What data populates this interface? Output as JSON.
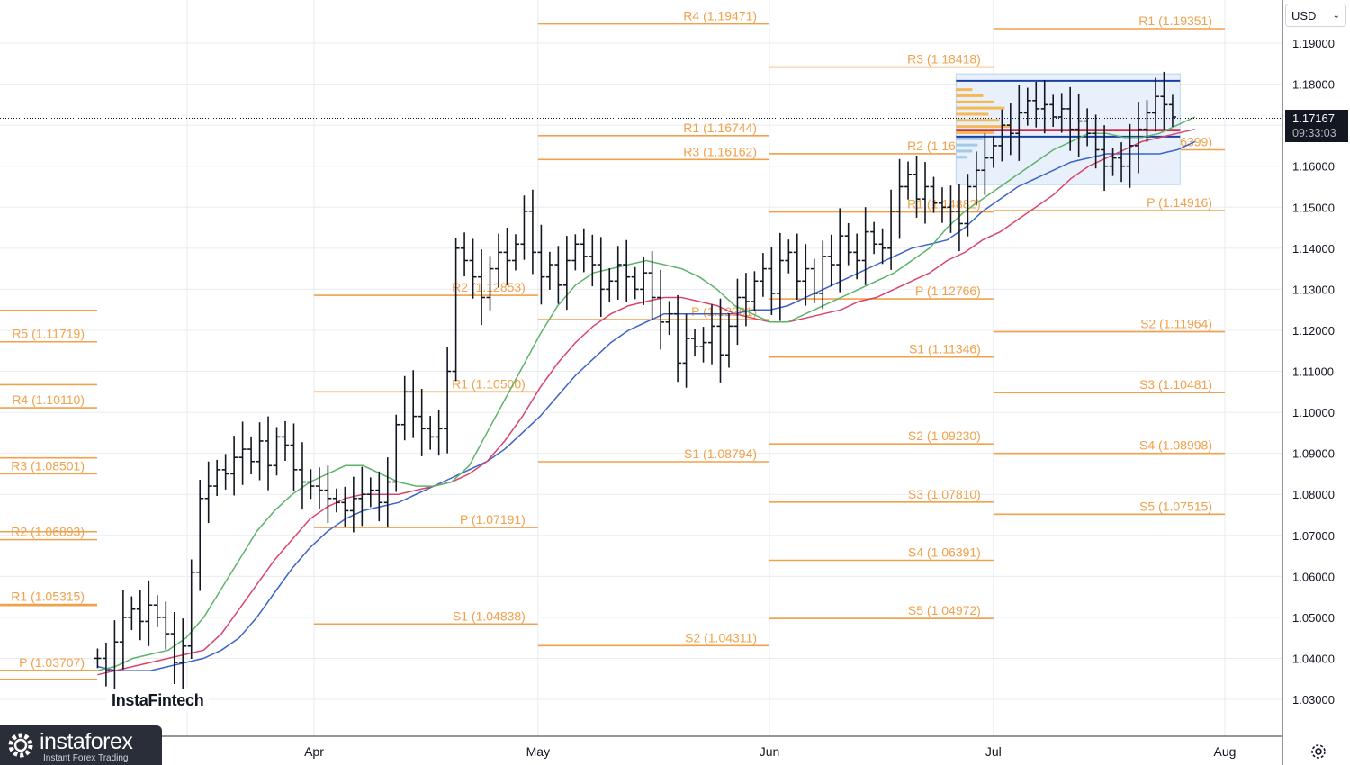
{
  "toolbar": {
    "currency_label": "USD",
    "last_price": "1.17167",
    "countdown": "09:33:03",
    "settings_icon": "gear-icon",
    "dropdown_icon": "chevron-down-icon"
  },
  "branding": {
    "chart_logo": "InstaFintech",
    "brand_name": "instaforex",
    "brand_tagline": "Instant Forex Trading",
    "brand_icon": "gear-icon"
  },
  "colors": {
    "pivot": "#f0a14b",
    "bars": "#131722",
    "sma_fast": "#5db36a",
    "sma_mid": "#d9456a",
    "sma_slow": "#3d63c9",
    "volume_profile": "#f5b342",
    "vp_box": "#b8d4ee",
    "grid": "#e9ebf0"
  },
  "chart_data": {
    "type": "ohlc",
    "ylim": [
      1.022,
      1.202
    ],
    "y_ticks": [
      "1.19000",
      "1.18000",
      "1.17000",
      "1.16000",
      "1.15000",
      "1.14000",
      "1.13000",
      "1.12000",
      "1.11000",
      "1.10000",
      "1.09000",
      "1.08000",
      "1.07000",
      "1.06000",
      "1.05000",
      "1.04000",
      "1.03000"
    ],
    "y_tick_values": [
      1.19,
      1.18,
      1.17,
      1.16,
      1.15,
      1.14,
      1.13,
      1.12,
      1.11,
      1.1,
      1.09,
      1.08,
      1.07,
      1.06,
      1.05,
      1.04,
      1.03
    ],
    "x_ticks": [
      "Apr",
      "May",
      "Jun",
      "Jul",
      "Aug"
    ],
    "x_tick_dates": [
      "2025-04-01",
      "2025-05-01",
      "2025-06-01",
      "2025-07-01",
      "2025-08-01"
    ],
    "x_start": "2025-03-03",
    "last_price": 1.17167,
    "pivot_months": [
      {
        "month": "2025-02",
        "levels": [
          {
            "label": "R5 (1.11719)",
            "value": 1.11719
          },
          {
            "label": "R4 (1.10110)",
            "value": 1.1011
          },
          {
            "label": "R3 (1.08501)",
            "value": 1.08501
          },
          {
            "label": "R2 (1.06893)",
            "value": 1.06893
          },
          {
            "label": "R1 (1.05315)",
            "value": 1.05315
          },
          {
            "label": "P (1.03707)",
            "value": 1.03707
          },
          {
            "label": "",
            "value": 1.12487
          },
          {
            "label": "",
            "value": 1.10673
          },
          {
            "label": "",
            "value": 1.08888
          },
          {
            "label": "",
            "value": 1.07088
          },
          {
            "label": "",
            "value": 1.05288
          },
          {
            "label": "",
            "value": 1.03488
          }
        ]
      },
      {
        "month": "2025-03",
        "levels": [
          {
            "label": "R2 (1.12853)",
            "value": 1.12853
          },
          {
            "label": "R1 (1.10500)",
            "value": 1.105
          },
          {
            "label": "P (1.07191)",
            "value": 1.07191
          },
          {
            "label": "S1 (1.04838)",
            "value": 1.04838
          }
        ]
      },
      {
        "month": "2025-04",
        "levels": [
          {
            "label": "R4 (1.19471)",
            "value": 1.19471
          },
          {
            "label": "R3 (1.16162)",
            "value": 1.16162
          },
          {
            "label": "R1 (1.16744)",
            "value": 1.16744
          },
          {
            "label": "P (1.12261)",
            "value": 1.12261
          },
          {
            "label": "S1 (1.08794)",
            "value": 1.08794
          },
          {
            "label": "S2 (1.04311)",
            "value": 1.04311
          }
        ]
      },
      {
        "month": "2025-05",
        "levels": [
          {
            "label": "R3 (1.18418)",
            "value": 1.18418
          },
          {
            "label": "R2 (1.16302)",
            "value": 1.16302
          },
          {
            "label": "R1 (1.14882)",
            "value": 1.14882
          },
          {
            "label": "P (1.12766)",
            "value": 1.12766
          },
          {
            "label": "S1 (1.11346)",
            "value": 1.11346
          },
          {
            "label": "S2 (1.09230)",
            "value": 1.0923
          },
          {
            "label": "S3 (1.07810)",
            "value": 1.0781
          },
          {
            "label": "S4 (1.06391)",
            "value": 1.06391
          },
          {
            "label": "S5 (1.04972)",
            "value": 1.04972
          }
        ]
      },
      {
        "month": "2025-06",
        "levels": [
          {
            "label": "R1 (1.19351)",
            "value": 1.19351
          },
          {
            "label": "P (1.16399)",
            "value": 1.16399
          },
          {
            "label": "P (1.14916)",
            "value": 1.14916
          },
          {
            "label": "S2 (1.11964)",
            "value": 1.11964
          },
          {
            "label": "S3 (1.10481)",
            "value": 1.10481
          },
          {
            "label": "S4 (1.08998)",
            "value": 1.08998
          },
          {
            "label": "S5 (1.07515)",
            "value": 1.07515
          }
        ]
      }
    ],
    "close_series": [
      1.04,
      1.037,
      1.044,
      1.05,
      1.052,
      1.049,
      1.053,
      1.05,
      1.046,
      1.039,
      1.043,
      1.061,
      1.079,
      1.082,
      1.086,
      1.085,
      1.089,
      1.091,
      1.088,
      1.093,
      1.087,
      1.094,
      1.092,
      1.086,
      1.083,
      1.082,
      1.081,
      1.079,
      1.078,
      1.076,
      1.079,
      1.08,
      1.081,
      1.078,
      1.083,
      1.097,
      1.105,
      1.099,
      1.096,
      1.094,
      1.096,
      1.11,
      1.14,
      1.137,
      1.133,
      1.128,
      1.135,
      1.139,
      1.137,
      1.141,
      1.149,
      1.139,
      1.133,
      1.136,
      1.131,
      1.137,
      1.141,
      1.138,
      1.136,
      1.13,
      1.132,
      1.136,
      1.133,
      1.13,
      1.134,
      1.128,
      1.122,
      1.124,
      1.112,
      1.118,
      1.116,
      1.117,
      1.121,
      1.114,
      1.121,
      1.128,
      1.127,
      1.132,
      1.135,
      1.129,
      1.137,
      1.139,
      1.132,
      1.135,
      1.129,
      1.138,
      1.136,
      1.143,
      1.139,
      1.137,
      1.144,
      1.141,
      1.14,
      1.149,
      1.155,
      1.158,
      1.152,
      1.155,
      1.151,
      1.15,
      1.149,
      1.146,
      1.155,
      1.159,
      1.162,
      1.165,
      1.17,
      1.168,
      1.173,
      1.176,
      1.174,
      1.175,
      1.172,
      1.174,
      1.169,
      1.171,
      1.168,
      1.164,
      1.16,
      1.162,
      1.16,
      1.165,
      1.169,
      1.173,
      1.177,
      1.175,
      1.172
    ],
    "sma_fast": [
      1.037,
      1.038,
      1.04,
      1.041,
      1.042,
      1.045,
      1.05,
      1.057,
      1.064,
      1.071,
      1.076,
      1.08,
      1.083,
      1.085,
      1.087,
      1.087,
      1.085,
      1.083,
      1.082,
      1.082,
      1.083,
      1.087,
      1.095,
      1.103,
      1.111,
      1.119,
      1.126,
      1.131,
      1.134,
      1.135,
      1.136,
      1.137,
      1.136,
      1.135,
      1.133,
      1.13,
      1.126,
      1.124,
      1.122,
      1.122,
      1.124,
      1.126,
      1.128,
      1.13,
      1.132,
      1.134,
      1.137,
      1.14,
      1.145,
      1.149,
      1.152,
      1.155,
      1.158,
      1.161,
      1.164,
      1.166,
      1.168,
      1.168,
      1.167,
      1.167,
      1.168,
      1.17,
      1.172
    ],
    "sma_mid": [
      1.036,
      1.037,
      1.038,
      1.039,
      1.04,
      1.041,
      1.042,
      1.046,
      1.052,
      1.058,
      1.064,
      1.069,
      1.074,
      1.077,
      1.079,
      1.08,
      1.08,
      1.08,
      1.081,
      1.082,
      1.083,
      1.085,
      1.088,
      1.093,
      1.099,
      1.106,
      1.112,
      1.117,
      1.121,
      1.124,
      1.126,
      1.127,
      1.128,
      1.128,
      1.127,
      1.126,
      1.124,
      1.123,
      1.122,
      1.122,
      1.123,
      1.124,
      1.125,
      1.127,
      1.128,
      1.13,
      1.132,
      1.134,
      1.137,
      1.139,
      1.142,
      1.144,
      1.147,
      1.15,
      1.153,
      1.157,
      1.16,
      1.162,
      1.164,
      1.166,
      1.167,
      1.168,
      1.169
    ],
    "sma_slow": [
      1.038,
      1.037,
      1.037,
      1.037,
      1.038,
      1.039,
      1.04,
      1.042,
      1.045,
      1.05,
      1.056,
      1.062,
      1.067,
      1.071,
      1.074,
      1.076,
      1.077,
      1.078,
      1.08,
      1.082,
      1.084,
      1.086,
      1.088,
      1.091,
      1.095,
      1.099,
      1.104,
      1.109,
      1.113,
      1.117,
      1.12,
      1.122,
      1.124,
      1.124,
      1.124,
      1.124,
      1.124,
      1.125,
      1.125,
      1.126,
      1.128,
      1.13,
      1.132,
      1.134,
      1.136,
      1.138,
      1.14,
      1.141,
      1.142,
      1.145,
      1.149,
      1.152,
      1.155,
      1.157,
      1.159,
      1.161,
      1.162,
      1.163,
      1.163,
      1.163,
      1.163,
      1.164,
      1.166
    ]
  }
}
